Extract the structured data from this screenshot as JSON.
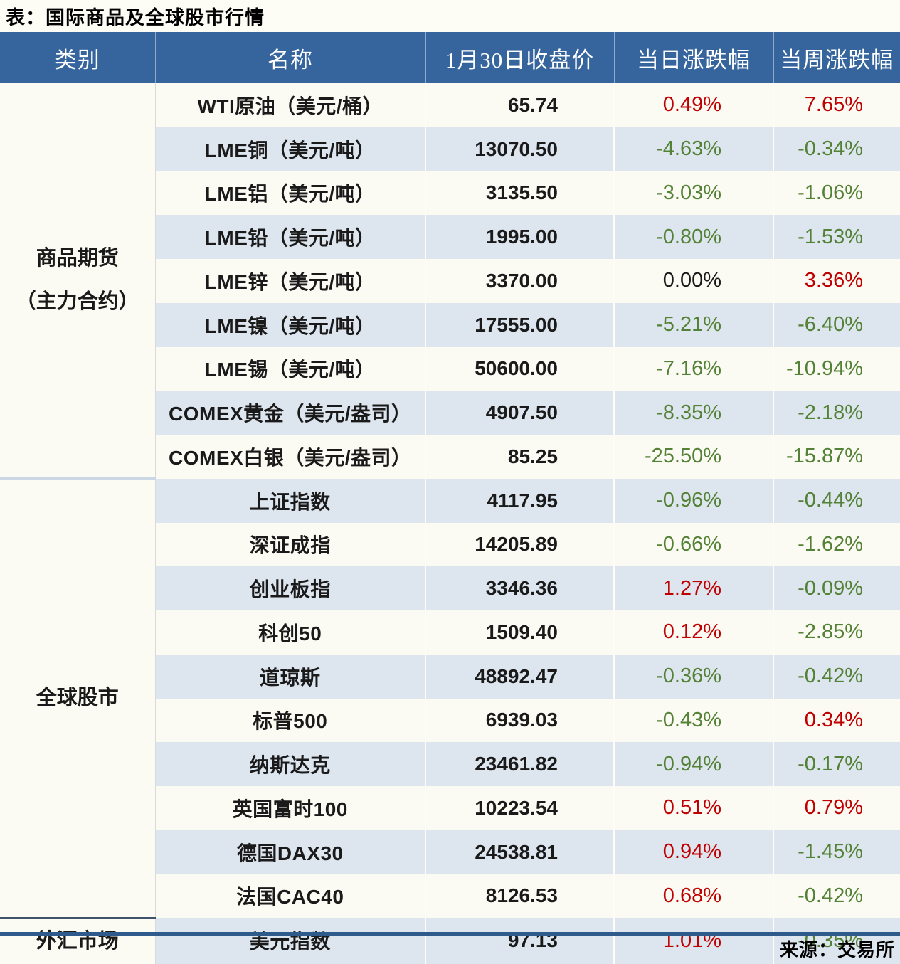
{
  "chart_data": {
    "type": "table",
    "title": "表：国际商品及全球股市行情",
    "source": "来源：交易所",
    "columns": [
      "类别",
      "名称",
      "1月30日收盘价",
      "当日涨跌幅",
      "当周涨跌幅"
    ],
    "groups": [
      {
        "category": "商品期货\n（主力合约）",
        "rows": [
          {
            "name": "WTI原油（美元/桶）",
            "close": "65.74",
            "day": "0.49%",
            "week": "7.65%"
          },
          {
            "name": "LME铜（美元/吨）",
            "close": "13070.50",
            "day": "-4.63%",
            "week": "-0.34%"
          },
          {
            "name": "LME铝（美元/吨）",
            "close": "3135.50",
            "day": "-3.03%",
            "week": "-1.06%"
          },
          {
            "name": "LME铅（美元/吨）",
            "close": "1995.00",
            "day": "-0.80%",
            "week": "-1.53%"
          },
          {
            "name": "LME锌（美元/吨）",
            "close": "3370.00",
            "day": "0.00%",
            "week": "3.36%"
          },
          {
            "name": "LME镍（美元/吨）",
            "close": "17555.00",
            "day": "-5.21%",
            "week": "-6.40%"
          },
          {
            "name": "LME锡（美元/吨）",
            "close": "50600.00",
            "day": "-7.16%",
            "week": "-10.94%"
          },
          {
            "name": "COMEX黄金（美元/盎司）",
            "close": "4907.50",
            "day": "-8.35%",
            "week": "-2.18%"
          },
          {
            "name": "COMEX白银（美元/盎司）",
            "close": "85.25",
            "day": "-25.50%",
            "week": "-15.87%"
          }
        ]
      },
      {
        "category": "全球股市",
        "rows": [
          {
            "name": "上证指数",
            "close": "4117.95",
            "day": "-0.96%",
            "week": "-0.44%"
          },
          {
            "name": "深证成指",
            "close": "14205.89",
            "day": "-0.66%",
            "week": "-1.62%"
          },
          {
            "name": "创业板指",
            "close": "3346.36",
            "day": "1.27%",
            "week": "-0.09%"
          },
          {
            "name": "科创50",
            "close": "1509.40",
            "day": "0.12%",
            "week": "-2.85%"
          },
          {
            "name": "道琼斯",
            "close": "48892.47",
            "day": "-0.36%",
            "week": "-0.42%"
          },
          {
            "name": "标普500",
            "close": "6939.03",
            "day": "-0.43%",
            "week": "0.34%"
          },
          {
            "name": "纳斯达克",
            "close": "23461.82",
            "day": "-0.94%",
            "week": "-0.17%"
          },
          {
            "name": "英国富时100",
            "close": "10223.54",
            "day": "0.51%",
            "week": "0.79%"
          },
          {
            "name": "德国DAX30",
            "close": "24538.81",
            "day": "0.94%",
            "week": "-1.45%"
          },
          {
            "name": "法国CAC40",
            "close": "8126.53",
            "day": "0.68%",
            "week": "-0.42%"
          }
        ]
      },
      {
        "category": "外汇市场",
        "rows": [
          {
            "name": "美元指数",
            "close": "97.13",
            "day": "1.01%",
            "week": "-0.35%"
          }
        ]
      }
    ],
    "colors": {
      "positive": "#c00000",
      "negative": "#538135",
      "zero": "#1a1a1a",
      "header_bg": "#36659e",
      "row_light": "#fcfbf3",
      "row_blue": "#dde5ef",
      "frame": "#2e5a8c"
    },
    "layout": {
      "legend_position": "none",
      "grid": "zebra-rows"
    }
  }
}
